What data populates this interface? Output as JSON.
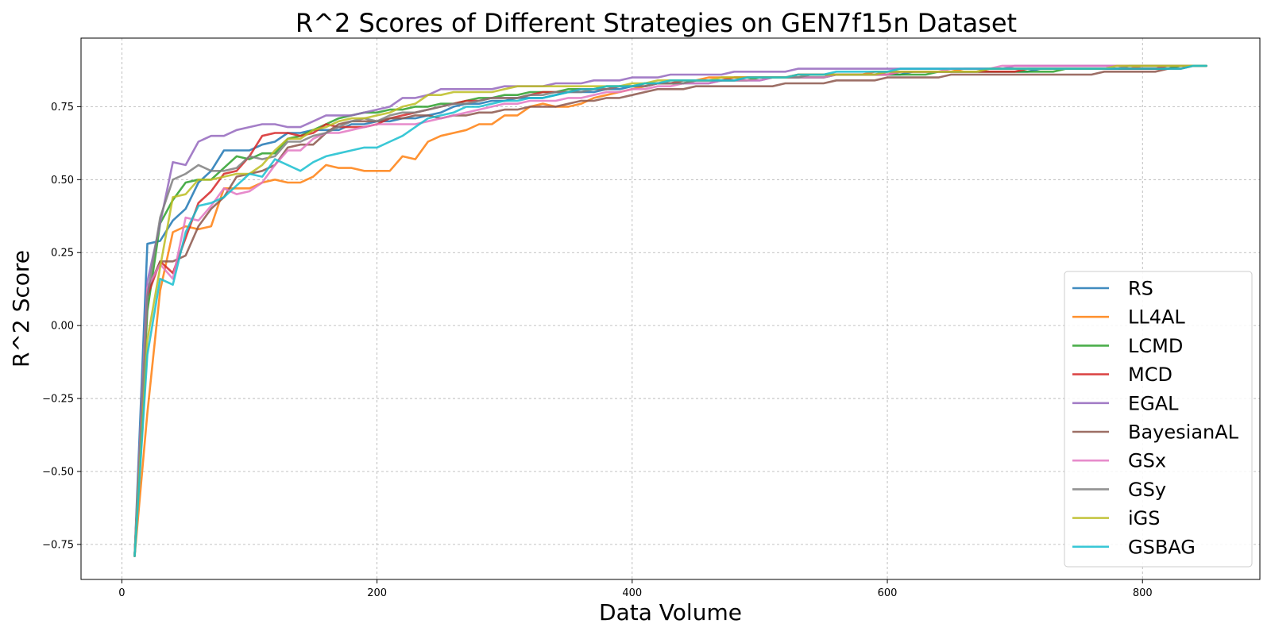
{
  "chart_data": {
    "type": "line",
    "title": "R^2 Scores of Different Strategies on GEN7f15n Dataset",
    "xlabel": "Data Volume",
    "ylabel": "R^2 Score",
    "xlim": [
      -32,
      892
    ],
    "ylim": [
      -0.87,
      0.985
    ],
    "xticks": [
      0,
      200,
      400,
      600,
      800
    ],
    "xtick_labels": [
      "0",
      "200",
      "400",
      "600",
      "800"
    ],
    "yticks": [
      -0.75,
      -0.5,
      -0.25,
      0.0,
      0.25,
      0.5,
      0.75
    ],
    "ytick_labels": [
      "−0.75",
      "−0.50",
      "−0.25",
      "0.00",
      "0.25",
      "0.50",
      "0.75"
    ],
    "grid": true,
    "legend_position": "lower-right",
    "x": [
      10,
      20,
      30,
      40,
      50,
      60,
      70,
      80,
      90,
      100,
      110,
      120,
      130,
      140,
      150,
      160,
      170,
      180,
      190,
      200,
      210,
      220,
      230,
      240,
      250,
      260,
      270,
      280,
      290,
      300,
      310,
      320,
      330,
      340,
      350,
      360,
      370,
      380,
      390,
      400,
      410,
      420,
      430,
      440,
      450,
      460,
      470,
      480,
      490,
      500,
      510,
      520,
      530,
      540,
      550,
      560,
      570,
      580,
      590,
      600,
      610,
      620,
      630,
      640,
      650,
      660,
      670,
      680,
      690,
      700,
      710,
      720,
      730,
      740,
      750,
      760,
      770,
      780,
      790,
      800,
      810,
      820,
      830,
      840,
      850
    ],
    "series": [
      {
        "name": "RS",
        "color": "#1f77b4",
        "values": [
          -0.79,
          0.28,
          0.29,
          0.36,
          0.4,
          0.49,
          0.53,
          0.6,
          0.6,
          0.6,
          0.62,
          0.63,
          0.66,
          0.66,
          0.67,
          0.67,
          0.67,
          0.69,
          0.69,
          0.7,
          0.7,
          0.71,
          0.71,
          0.72,
          0.73,
          0.75,
          0.76,
          0.76,
          0.77,
          0.77,
          0.78,
          0.78,
          0.78,
          0.79,
          0.8,
          0.8,
          0.8,
          0.81,
          0.81,
          0.82,
          0.82,
          0.83,
          0.83,
          0.83,
          0.83,
          0.83,
          0.84,
          0.84,
          0.84,
          0.84,
          0.85,
          0.85,
          0.85,
          0.85,
          0.85,
          0.86,
          0.86,
          0.86,
          0.86,
          0.86,
          0.86,
          0.87,
          0.87,
          0.87,
          0.87,
          0.87,
          0.87,
          0.87,
          0.87,
          0.87,
          0.87,
          0.88,
          0.88,
          0.88,
          0.88,
          0.88,
          0.88,
          0.88,
          0.88,
          0.88,
          0.88,
          0.88,
          0.89,
          0.89,
          0.89
        ]
      },
      {
        "name": "LL4AL",
        "color": "#ff7f0e",
        "values": [
          -0.79,
          -0.3,
          0.12,
          0.32,
          0.34,
          0.33,
          0.34,
          0.47,
          0.47,
          0.47,
          0.49,
          0.5,
          0.49,
          0.49,
          0.51,
          0.55,
          0.54,
          0.54,
          0.53,
          0.53,
          0.53,
          0.58,
          0.57,
          0.63,
          0.65,
          0.66,
          0.67,
          0.69,
          0.69,
          0.72,
          0.72,
          0.75,
          0.76,
          0.75,
          0.75,
          0.76,
          0.78,
          0.79,
          0.8,
          0.81,
          0.82,
          0.83,
          0.83,
          0.83,
          0.84,
          0.85,
          0.85,
          0.85,
          0.85,
          0.85,
          0.85,
          0.85,
          0.86,
          0.86,
          0.86,
          0.86,
          0.86,
          0.86,
          0.87,
          0.87,
          0.87,
          0.87,
          0.87,
          0.87,
          0.87,
          0.88,
          0.88,
          0.88,
          0.88,
          0.88,
          0.88,
          0.88,
          0.88,
          0.88,
          0.88,
          0.88,
          0.88,
          0.88,
          0.88,
          0.89,
          0.89,
          0.89,
          0.89,
          0.89,
          0.89
        ]
      },
      {
        "name": "LCMD",
        "color": "#2ca02c",
        "values": [
          -0.79,
          0.05,
          0.35,
          0.43,
          0.49,
          0.5,
          0.5,
          0.54,
          0.58,
          0.57,
          0.59,
          0.59,
          0.64,
          0.65,
          0.67,
          0.69,
          0.71,
          0.72,
          0.73,
          0.73,
          0.74,
          0.74,
          0.75,
          0.75,
          0.76,
          0.76,
          0.77,
          0.78,
          0.78,
          0.79,
          0.79,
          0.8,
          0.8,
          0.8,
          0.81,
          0.81,
          0.81,
          0.82,
          0.82,
          0.82,
          0.83,
          0.83,
          0.83,
          0.83,
          0.84,
          0.84,
          0.84,
          0.84,
          0.84,
          0.85,
          0.85,
          0.85,
          0.85,
          0.85,
          0.85,
          0.86,
          0.86,
          0.86,
          0.86,
          0.86,
          0.86,
          0.86,
          0.86,
          0.87,
          0.87,
          0.87,
          0.87,
          0.87,
          0.87,
          0.87,
          0.87,
          0.87,
          0.87,
          0.88,
          0.88,
          0.88,
          0.88,
          0.88,
          0.88,
          0.88,
          0.88,
          0.88,
          0.89,
          0.89,
          0.89
        ]
      },
      {
        "name": "MCD",
        "color": "#d62728",
        "values": [
          -0.79,
          0.1,
          0.22,
          0.18,
          0.3,
          0.42,
          0.46,
          0.52,
          0.53,
          0.58,
          0.65,
          0.66,
          0.66,
          0.65,
          0.66,
          0.69,
          0.68,
          0.68,
          0.68,
          0.69,
          0.71,
          0.72,
          0.73,
          0.74,
          0.75,
          0.76,
          0.77,
          0.77,
          0.78,
          0.78,
          0.78,
          0.79,
          0.8,
          0.8,
          0.8,
          0.81,
          0.81,
          0.81,
          0.82,
          0.82,
          0.82,
          0.83,
          0.83,
          0.84,
          0.84,
          0.84,
          0.84,
          0.85,
          0.85,
          0.85,
          0.85,
          0.85,
          0.86,
          0.86,
          0.86,
          0.86,
          0.86,
          0.86,
          0.86,
          0.86,
          0.87,
          0.87,
          0.87,
          0.87,
          0.87,
          0.87,
          0.87,
          0.87,
          0.87,
          0.87,
          0.88,
          0.88,
          0.88,
          0.88,
          0.88,
          0.88,
          0.88,
          0.88,
          0.88,
          0.88,
          0.88,
          0.89,
          0.89,
          0.89,
          0.89
        ]
      },
      {
        "name": "EGAL",
        "color": "#9467bd",
        "values": [
          -0.79,
          0.15,
          0.35,
          0.56,
          0.55,
          0.63,
          0.65,
          0.65,
          0.67,
          0.68,
          0.69,
          0.69,
          0.68,
          0.68,
          0.7,
          0.72,
          0.72,
          0.72,
          0.73,
          0.74,
          0.75,
          0.78,
          0.78,
          0.79,
          0.81,
          0.81,
          0.81,
          0.81,
          0.81,
          0.82,
          0.82,
          0.82,
          0.82,
          0.83,
          0.83,
          0.83,
          0.84,
          0.84,
          0.84,
          0.85,
          0.85,
          0.85,
          0.86,
          0.86,
          0.86,
          0.86,
          0.86,
          0.87,
          0.87,
          0.87,
          0.87,
          0.87,
          0.88,
          0.88,
          0.88,
          0.88,
          0.88,
          0.88,
          0.88,
          0.88,
          0.88,
          0.88,
          0.88,
          0.88,
          0.88,
          0.88,
          0.88,
          0.88,
          0.88,
          0.89,
          0.89,
          0.89,
          0.89,
          0.89,
          0.89,
          0.89,
          0.89,
          0.89,
          0.89,
          0.89,
          0.89,
          0.89,
          0.89,
          0.89,
          0.89
        ]
      },
      {
        "name": "BayesianAL",
        "color": "#8c564b",
        "values": [
          -0.79,
          0.12,
          0.22,
          0.22,
          0.24,
          0.34,
          0.4,
          0.44,
          0.51,
          0.52,
          0.53,
          0.55,
          0.61,
          0.62,
          0.62,
          0.66,
          0.69,
          0.7,
          0.7,
          0.7,
          0.71,
          0.71,
          0.72,
          0.72,
          0.71,
          0.72,
          0.72,
          0.73,
          0.73,
          0.74,
          0.74,
          0.75,
          0.75,
          0.75,
          0.76,
          0.77,
          0.77,
          0.78,
          0.78,
          0.79,
          0.8,
          0.81,
          0.81,
          0.81,
          0.82,
          0.82,
          0.82,
          0.82,
          0.82,
          0.82,
          0.82,
          0.83,
          0.83,
          0.83,
          0.83,
          0.84,
          0.84,
          0.84,
          0.84,
          0.85,
          0.85,
          0.85,
          0.85,
          0.85,
          0.86,
          0.86,
          0.86,
          0.86,
          0.86,
          0.86,
          0.86,
          0.86,
          0.86,
          0.86,
          0.86,
          0.86,
          0.87,
          0.87,
          0.87,
          0.87,
          0.87,
          0.88,
          0.88,
          0.89,
          0.89
        ]
      },
      {
        "name": "GSx",
        "color": "#e377c2",
        "values": [
          -0.79,
          0.13,
          0.21,
          0.16,
          0.37,
          0.36,
          0.41,
          0.47,
          0.45,
          0.46,
          0.49,
          0.55,
          0.6,
          0.6,
          0.64,
          0.66,
          0.66,
          0.67,
          0.68,
          0.69,
          0.69,
          0.69,
          0.69,
          0.7,
          0.71,
          0.72,
          0.73,
          0.74,
          0.75,
          0.76,
          0.76,
          0.77,
          0.77,
          0.77,
          0.78,
          0.78,
          0.79,
          0.8,
          0.8,
          0.81,
          0.81,
          0.82,
          0.82,
          0.83,
          0.83,
          0.83,
          0.84,
          0.84,
          0.84,
          0.84,
          0.85,
          0.85,
          0.85,
          0.85,
          0.85,
          0.86,
          0.86,
          0.86,
          0.86,
          0.86,
          0.87,
          0.87,
          0.87,
          0.87,
          0.88,
          0.88,
          0.88,
          0.88,
          0.89,
          0.89,
          0.89,
          0.89,
          0.89,
          0.89,
          0.89,
          0.89,
          0.89,
          0.89,
          0.89,
          0.89,
          0.89,
          0.89,
          0.89,
          0.89,
          0.89
        ]
      },
      {
        "name": "GSy",
        "color": "#7f7f7f",
        "values": [
          -0.79,
          0.1,
          0.37,
          0.5,
          0.52,
          0.55,
          0.53,
          0.53,
          0.54,
          0.58,
          0.57,
          0.58,
          0.63,
          0.63,
          0.65,
          0.66,
          0.68,
          0.7,
          0.71,
          0.7,
          0.72,
          0.73,
          0.73,
          0.74,
          0.75,
          0.76,
          0.76,
          0.77,
          0.78,
          0.78,
          0.78,
          0.79,
          0.79,
          0.8,
          0.8,
          0.8,
          0.81,
          0.81,
          0.82,
          0.82,
          0.82,
          0.83,
          0.83,
          0.83,
          0.84,
          0.84,
          0.84,
          0.84,
          0.85,
          0.85,
          0.85,
          0.85,
          0.85,
          0.86,
          0.86,
          0.86,
          0.86,
          0.86,
          0.86,
          0.87,
          0.87,
          0.87,
          0.87,
          0.87,
          0.87,
          0.87,
          0.87,
          0.88,
          0.88,
          0.88,
          0.88,
          0.88,
          0.88,
          0.88,
          0.88,
          0.88,
          0.88,
          0.88,
          0.89,
          0.89,
          0.89,
          0.89,
          0.89,
          0.89,
          0.89
        ]
      },
      {
        "name": "iGS",
        "color": "#bcbd22",
        "values": [
          -0.79,
          -0.05,
          0.2,
          0.44,
          0.45,
          0.5,
          0.5,
          0.51,
          0.52,
          0.52,
          0.55,
          0.6,
          0.64,
          0.64,
          0.67,
          0.68,
          0.7,
          0.71,
          0.71,
          0.72,
          0.73,
          0.75,
          0.76,
          0.79,
          0.79,
          0.8,
          0.8,
          0.8,
          0.8,
          0.81,
          0.82,
          0.82,
          0.82,
          0.82,
          0.82,
          0.82,
          0.82,
          0.82,
          0.82,
          0.83,
          0.83,
          0.84,
          0.84,
          0.84,
          0.84,
          0.84,
          0.85,
          0.85,
          0.85,
          0.85,
          0.85,
          0.85,
          0.86,
          0.86,
          0.86,
          0.86,
          0.86,
          0.86,
          0.86,
          0.87,
          0.87,
          0.87,
          0.87,
          0.87,
          0.87,
          0.87,
          0.87,
          0.88,
          0.88,
          0.88,
          0.88,
          0.88,
          0.88,
          0.88,
          0.88,
          0.88,
          0.88,
          0.89,
          0.89,
          0.89,
          0.89,
          0.89,
          0.89,
          0.89,
          0.89
        ]
      },
      {
        "name": "GSBAG",
        "color": "#17becf",
        "values": [
          -0.79,
          -0.1,
          0.16,
          0.14,
          0.32,
          0.41,
          0.42,
          0.44,
          0.48,
          0.52,
          0.51,
          0.57,
          0.55,
          0.53,
          0.56,
          0.58,
          0.59,
          0.6,
          0.61,
          0.61,
          0.63,
          0.65,
          0.68,
          0.71,
          0.72,
          0.73,
          0.75,
          0.75,
          0.76,
          0.77,
          0.77,
          0.78,
          0.78,
          0.79,
          0.8,
          0.81,
          0.81,
          0.82,
          0.82,
          0.82,
          0.83,
          0.83,
          0.84,
          0.84,
          0.84,
          0.84,
          0.84,
          0.84,
          0.85,
          0.85,
          0.85,
          0.85,
          0.86,
          0.86,
          0.86,
          0.87,
          0.87,
          0.87,
          0.87,
          0.87,
          0.88,
          0.88,
          0.88,
          0.88,
          0.88,
          0.88,
          0.88,
          0.88,
          0.88,
          0.88,
          0.88,
          0.88,
          0.88,
          0.88,
          0.88,
          0.88,
          0.88,
          0.88,
          0.88,
          0.88,
          0.88,
          0.88,
          0.88,
          0.89,
          0.89
        ]
      }
    ]
  }
}
